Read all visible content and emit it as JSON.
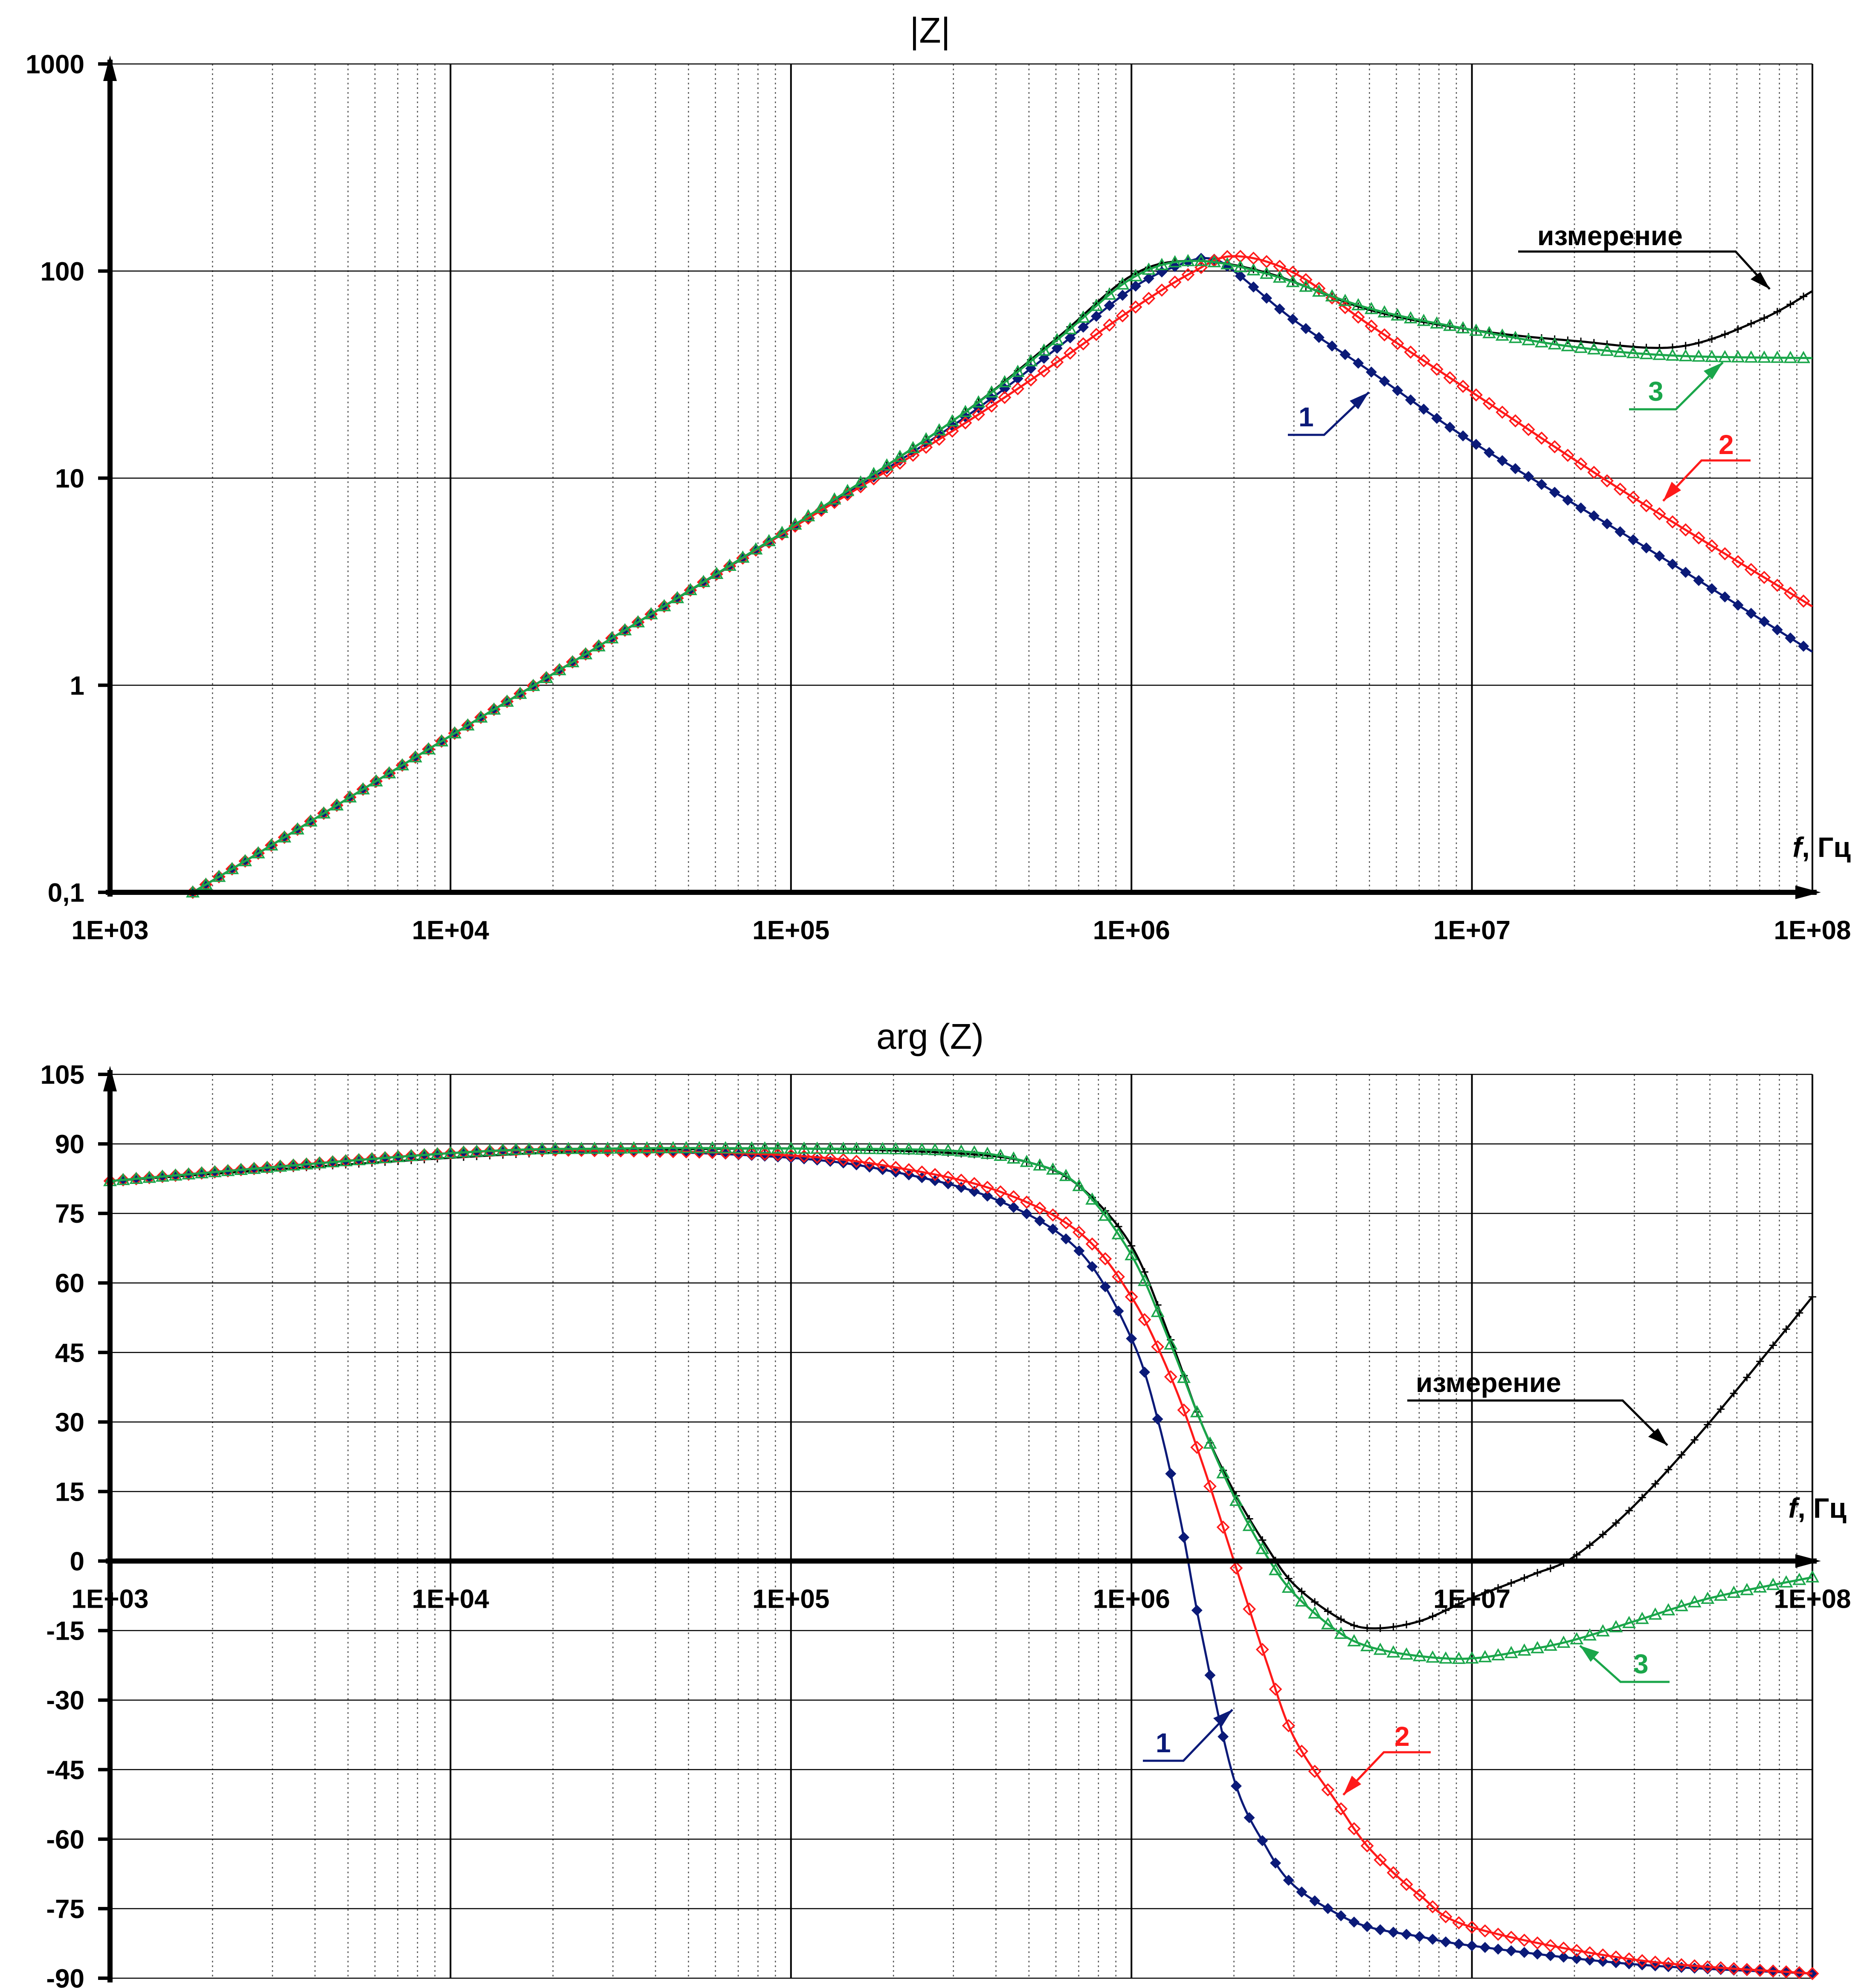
{
  "chart_data": [
    {
      "type": "line",
      "title": "|Z|",
      "xlabel": "f, Гц",
      "xlabel_italic": "f",
      "xlabel_unit": ", Гц",
      "ylabel": "",
      "xscale": "log",
      "yscale": "log",
      "xlim": [
        1000,
        100000000
      ],
      "ylim": [
        0.1,
        1000
      ],
      "x_tick_labels": [
        "1E+03",
        "1E+04",
        "1E+05",
        "1E+06",
        "1E+07",
        "1E+08"
      ],
      "y_tick_labels": [
        "0,1",
        "1",
        "10",
        "100",
        "1000"
      ],
      "grid": true,
      "series": [
        {
          "name": "измерение",
          "color": "#000000",
          "marker": "cross",
          "x": [
            1750,
            3000,
            10000,
            30000,
            100000,
            300000,
            600000,
            1000000,
            1500000,
            2500000,
            5000000,
            10000000,
            20000000,
            40000000,
            70000000,
            100000000
          ],
          "y": [
            0.1,
            0.17,
            0.57,
            1.7,
            5.8,
            19,
            47,
            95,
            112,
            98,
            65,
            52,
            46,
            43,
            58,
            80
          ]
        },
        {
          "name": "1",
          "color": "#0b1a78",
          "marker": "diamond-filled",
          "x": [
            1750,
            3000,
            10000,
            30000,
            100000,
            300000,
            600000,
            1000000,
            1400000,
            1700000,
            2000000,
            3000000,
            5000000,
            10000000,
            30000000,
            100000000
          ],
          "y": [
            0.1,
            0.17,
            0.57,
            1.7,
            5.7,
            18,
            42,
            82,
            108,
            115,
            100,
            58,
            33,
            15,
            5,
            1.45
          ]
        },
        {
          "name": "2",
          "color": "#ff1a1a",
          "marker": "diamond-open",
          "x": [
            1750,
            3000,
            10000,
            30000,
            100000,
            300000,
            600000,
            1000000,
            1500000,
            2000000,
            3000000,
            5000000,
            10000000,
            30000000,
            100000000
          ],
          "y": [
            0.1,
            0.17,
            0.57,
            1.7,
            5.7,
            17,
            36,
            65,
            98,
            118,
            98,
            55,
            26,
            8,
            2.4
          ]
        },
        {
          "name": "3",
          "color": "#1aa64a",
          "marker": "triangle-open",
          "x": [
            1750,
            3000,
            10000,
            30000,
            100000,
            300000,
            600000,
            1000000,
            1500000,
            2500000,
            5000000,
            10000000,
            20000000,
            40000000,
            100000000
          ],
          "y": [
            0.1,
            0.17,
            0.57,
            1.7,
            5.8,
            19,
            46,
            92,
            112,
            97,
            66,
            52,
            43,
            39,
            38
          ]
        }
      ],
      "annotations": [
        {
          "text": "измерение",
          "color": "#000000"
        },
        {
          "text": "1",
          "color": "#0b1a78"
        },
        {
          "text": "2",
          "color": "#ff1a1a"
        },
        {
          "text": "3",
          "color": "#1aa64a"
        }
      ]
    },
    {
      "type": "line",
      "title": "arg (Z)",
      "xlabel": "f, Гц",
      "xlabel_italic": "f",
      "xlabel_unit": ", Гц",
      "ylabel": "",
      "xscale": "log",
      "yscale": "linear",
      "xlim": [
        1000,
        100000000
      ],
      "ylim": [
        -90,
        105
      ],
      "x_tick_labels": [
        "1E+03",
        "1E+04",
        "1E+05",
        "1E+06",
        "1E+07",
        "1E+08"
      ],
      "y_tick_labels": [
        "105",
        "90",
        "75",
        "60",
        "45",
        "30",
        "15",
        "0",
        "-15",
        "-30",
        "-45",
        "-60",
        "-75",
        "-90"
      ],
      "grid": true,
      "series": [
        {
          "name": "измерение",
          "color": "#000000",
          "marker": "cross",
          "x": [
            1000,
            10000,
            30000,
            100000,
            300000,
            500000,
            700000,
            1000000,
            1300000,
            1600000,
            2000000,
            2500000,
            3000000,
            4000000,
            5000000,
            7000000,
            10000000,
            15000000,
            20000000,
            30000000,
            50000000,
            100000000
          ],
          "y": [
            82,
            87,
            88.5,
            89,
            88,
            86,
            81,
            68,
            48,
            30,
            15,
            3,
            -5,
            -12,
            -14.5,
            -13,
            -8,
            -3,
            1,
            12,
            30,
            57
          ]
        },
        {
          "name": "1",
          "color": "#0b1a78",
          "marker": "diamond-filled",
          "x": [
            1000,
            10000,
            30000,
            100000,
            200000,
            400000,
            700000,
            1000000,
            1200000,
            1400000,
            1600000,
            2000000,
            2500000,
            3000000,
            4000000,
            5000000,
            7000000,
            10000000,
            30000000,
            100000000
          ],
          "y": [
            82,
            88,
            88.5,
            87,
            84,
            78,
            67,
            48,
            30,
            8,
            -15,
            -47,
            -62,
            -70,
            -76,
            -79,
            -81,
            -83,
            -87,
            -89
          ]
        },
        {
          "name": "2",
          "color": "#ff1a1a",
          "marker": "diamond-open",
          "x": [
            1000,
            10000,
            30000,
            100000,
            200000,
            400000,
            700000,
            1000000,
            1300000,
            1600000,
            2000000,
            2500000,
            3000000,
            4000000,
            5000000,
            7000000,
            10000000,
            30000000,
            100000000
          ],
          "y": [
            82,
            88,
            88.5,
            87.5,
            85,
            80,
            71,
            57,
            40,
            22,
            0,
            -22,
            -38,
            -52,
            -62,
            -72,
            -79,
            -86,
            -89
          ]
        },
        {
          "name": "3",
          "color": "#1aa64a",
          "marker": "triangle-open",
          "x": [
            1000,
            10000,
            30000,
            100000,
            300000,
            500000,
            700000,
            1000000,
            1300000,
            1600000,
            2000000,
            2500000,
            3000000,
            4000000,
            5000000,
            7000000,
            10000000,
            15000000,
            20000000,
            30000000,
            50000000,
            100000000
          ],
          "y": [
            82,
            88,
            89,
            89,
            88.5,
            86,
            81,
            66,
            47,
            30,
            14,
            1,
            -7,
            -15,
            -18.5,
            -20.5,
            -21,
            -19,
            -17,
            -13,
            -8,
            -3.5
          ]
        }
      ],
      "annotations": [
        {
          "text": "измерение",
          "color": "#000000"
        },
        {
          "text": "1",
          "color": "#0b1a78"
        },
        {
          "text": "2",
          "color": "#ff1a1a"
        },
        {
          "text": "3",
          "color": "#1aa64a"
        }
      ]
    }
  ]
}
